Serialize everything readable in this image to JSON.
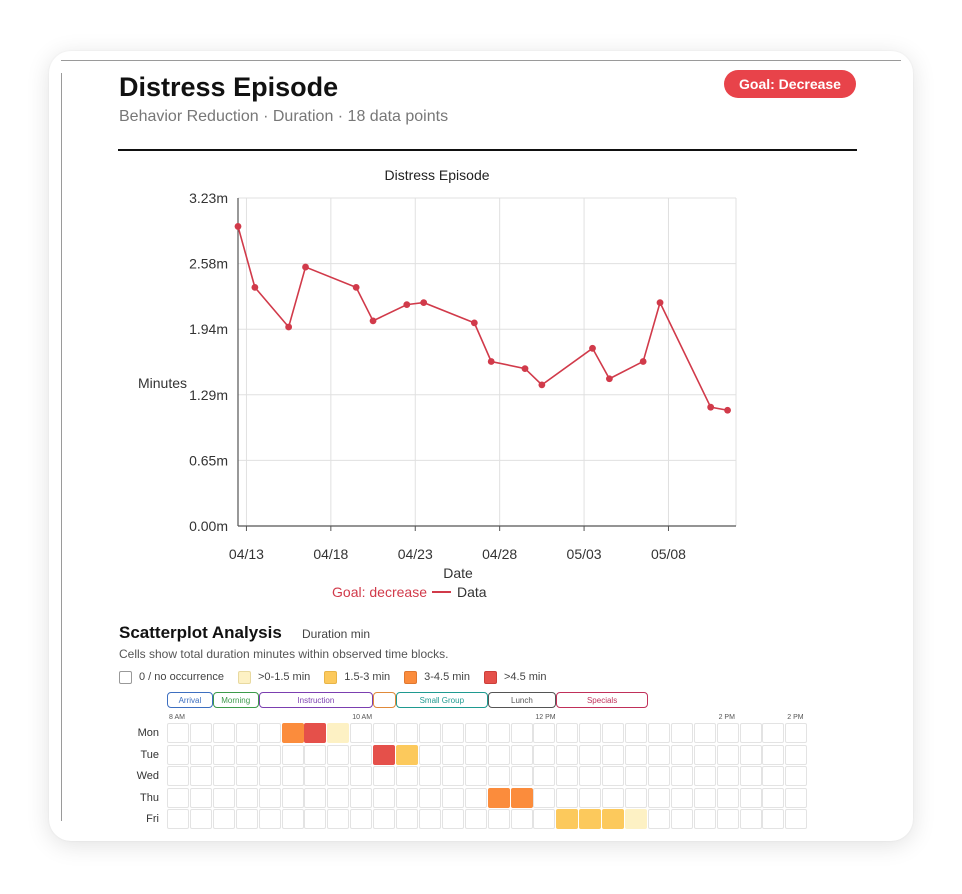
{
  "header": {
    "title": "Distress Episode",
    "subtitle": "Behavior Reduction · Duration · 18 data points",
    "goal_badge": "Goal: Decrease"
  },
  "colors": {
    "accent": "#e8434a",
    "line": "#d13a4a",
    "grid": "#e0e0e0",
    "scale": [
      "#ffffff",
      "#fdf1c4",
      "#fcc95c",
      "#fb8c3c",
      "#e5504a"
    ]
  },
  "chart_data": {
    "type": "line",
    "title": "Distress Episode",
    "xlabel": "Date",
    "ylabel": "Minutes",
    "y_ticks": [
      "0.00m",
      "0.65m",
      "1.29m",
      "1.94m",
      "2.58m",
      "3.23m"
    ],
    "ylim": [
      0,
      3.23
    ],
    "x_ticks": [
      "04/13",
      "04/18",
      "04/23",
      "04/28",
      "05/03",
      "05/08"
    ],
    "x_tick_days": [
      1,
      6,
      11,
      16,
      21,
      26
    ],
    "xlim": [
      0.5,
      30
    ],
    "grid": true,
    "legend": {
      "placement": "bottom",
      "goal_text": "Goal: decrease",
      "series_label": "Data"
    },
    "series": [
      {
        "name": "Data",
        "x": [
          0.5,
          1.5,
          3.5,
          4.5,
          7.5,
          8.5,
          10.5,
          11.5,
          14.5,
          15.5,
          17.5,
          18.5,
          21.5,
          22.5,
          24.5,
          25.5,
          28.5,
          29.5
        ],
        "values": [
          2.95,
          2.35,
          1.96,
          2.55,
          2.35,
          2.02,
          2.18,
          2.2,
          2.0,
          1.62,
          1.55,
          1.39,
          1.75,
          1.45,
          1.62,
          2.2,
          1.17,
          1.14
        ]
      }
    ]
  },
  "scatterplot": {
    "title": "Scatterplot Analysis",
    "unit": "Duration min",
    "description": "Cells show total duration minutes within observed time blocks.",
    "legend": [
      {
        "label": "0 / no occurrence",
        "color": "#ffffff",
        "border": "#999999"
      },
      {
        "label": ">0-1.5 min",
        "color": "#fdf1c4",
        "border": "#e8d9a0"
      },
      {
        "label": "1.5-3 min",
        "color": "#fcc95c",
        "border": "#e8b548"
      },
      {
        "label": "3-4.5 min",
        "color": "#fb8c3c",
        "border": "#e07830"
      },
      {
        "label": ">4.5 min",
        "color": "#e5504a",
        "border": "#cc3f3a"
      }
    ],
    "blocks": [
      {
        "label": "Arrival",
        "start": 0,
        "span": 2,
        "color": "#3d6fc0"
      },
      {
        "label": "Morning",
        "start": 2,
        "span": 2,
        "color": "#3c9a4a"
      },
      {
        "label": "Instruction",
        "start": 4,
        "span": 5,
        "color": "#7b3fb0"
      },
      {
        "label": "",
        "start": 9,
        "span": 1,
        "color": "#e08a3a"
      },
      {
        "label": "Small Group",
        "start": 10,
        "span": 4,
        "color": "#1f9a90"
      },
      {
        "label": "Lunch",
        "start": 14,
        "span": 3,
        "color": "#555555"
      },
      {
        "label": "Specials",
        "start": 17,
        "span": 4,
        "color": "#c0305a"
      }
    ],
    "time_labels": [
      {
        "label": "8 AM",
        "col": 0
      },
      {
        "label": "10 AM",
        "col": 8
      },
      {
        "label": "12 PM",
        "col": 16
      },
      {
        "label": "2 PM",
        "col": 24
      },
      {
        "label": "2 PM",
        "col": 27
      }
    ],
    "columns": 28,
    "days": [
      {
        "label": "Mon",
        "cells": {
          "5": 3,
          "6": 4,
          "7": 1
        }
      },
      {
        "label": "Tue",
        "cells": {
          "9": 4,
          "10": 2
        }
      },
      {
        "label": "Wed",
        "cells": {}
      },
      {
        "label": "Thu",
        "cells": {
          "14": 3,
          "15": 3
        }
      },
      {
        "label": "Fri",
        "cells": {
          "17": 2,
          "18": 2,
          "19": 2,
          "20": 1
        }
      }
    ]
  }
}
